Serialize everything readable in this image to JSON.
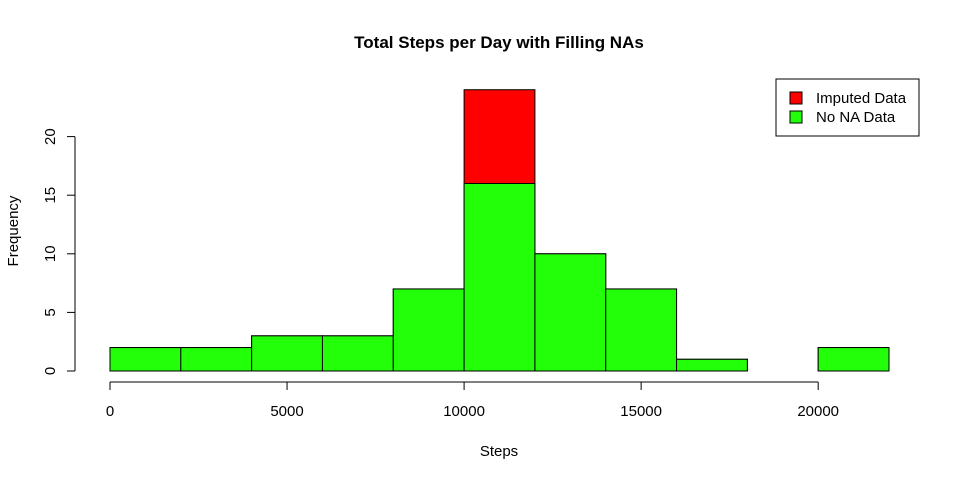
{
  "chart_data": {
    "type": "bar",
    "title": "Total Steps per Day with Filling NAs",
    "xlabel": "Steps",
    "ylabel": "Frequency",
    "xlim": [
      0,
      22000
    ],
    "ylim": [
      0,
      25
    ],
    "bin_edges": [
      0,
      2000,
      4000,
      6000,
      8000,
      10000,
      12000,
      14000,
      16000,
      18000,
      20000,
      22000
    ],
    "x_ticks": [
      0,
      5000,
      10000,
      15000,
      20000
    ],
    "y_ticks": [
      0,
      5,
      10,
      15,
      20
    ],
    "grid": false,
    "legend_position": "top-right",
    "series": [
      {
        "name": "No NA Data",
        "color": "#22ff08",
        "values": [
          2,
          2,
          3,
          3,
          7,
          16,
          10,
          7,
          1,
          0,
          2
        ]
      },
      {
        "name": "Imputed Data",
        "color": "#ff0000",
        "values": [
          2,
          2,
          3,
          3,
          7,
          24,
          10,
          7,
          1,
          0,
          2
        ]
      }
    ],
    "legend": [
      {
        "label": "Imputed Data",
        "color": "#ff0000"
      },
      {
        "label": "No NA Data",
        "color": "#22ff08"
      }
    ]
  }
}
